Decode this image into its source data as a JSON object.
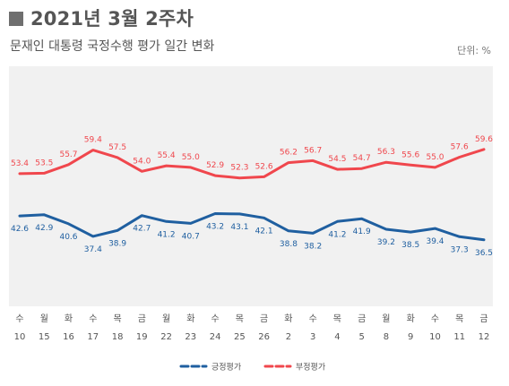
{
  "title": "2021년 3월 2주차",
  "subtitle": "문재인 대통령 국정수행 평가 일간 변화",
  "unit": "단위: %",
  "colors": {
    "positive": "#1f5fa0",
    "negative": "#f0474d",
    "plot_bg": "#f1f1f1"
  },
  "chart_data": {
    "type": "line",
    "title": "2021년 3월 2주차",
    "subtitle": "문재인 대통령 국정수행 평가 일간 변화",
    "unit": "%",
    "x": [
      {
        "day": "수",
        "date": "10"
      },
      {
        "day": "월",
        "date": "15"
      },
      {
        "day": "화",
        "date": "16"
      },
      {
        "day": "수",
        "date": "17"
      },
      {
        "day": "목",
        "date": "18"
      },
      {
        "day": "금",
        "date": "19"
      },
      {
        "day": "월",
        "date": "22"
      },
      {
        "day": "화",
        "date": "23"
      },
      {
        "day": "수",
        "date": "24"
      },
      {
        "day": "목",
        "date": "25"
      },
      {
        "day": "금",
        "date": "26"
      },
      {
        "day": "화",
        "date": "2"
      },
      {
        "day": "수",
        "date": "3"
      },
      {
        "day": "목",
        "date": "4"
      },
      {
        "day": "금",
        "date": "5"
      },
      {
        "day": "월",
        "date": "8"
      },
      {
        "day": "화",
        "date": "9"
      },
      {
        "day": "수",
        "date": "10"
      },
      {
        "day": "목",
        "date": "11"
      },
      {
        "day": "금",
        "date": "12"
      }
    ],
    "series": [
      {
        "name": "긍정평가",
        "color": "#1f5fa0",
        "labels_position": "below",
        "values": [
          42.6,
          42.9,
          40.6,
          37.4,
          38.9,
          42.7,
          41.2,
          40.7,
          43.2,
          43.1,
          42.1,
          38.8,
          38.2,
          41.2,
          41.9,
          39.2,
          38.5,
          39.4,
          37.3,
          36.5
        ]
      },
      {
        "name": "부정평가",
        "color": "#f0474d",
        "labels_position": "above",
        "values": [
          53.4,
          53.5,
          55.7,
          59.4,
          57.5,
          54.0,
          55.4,
          55.0,
          52.9,
          52.3,
          52.6,
          56.2,
          56.7,
          54.5,
          54.7,
          56.3,
          55.6,
          55.0,
          57.6,
          59.6
        ]
      }
    ],
    "grid": false,
    "legend": "bottom-center"
  }
}
